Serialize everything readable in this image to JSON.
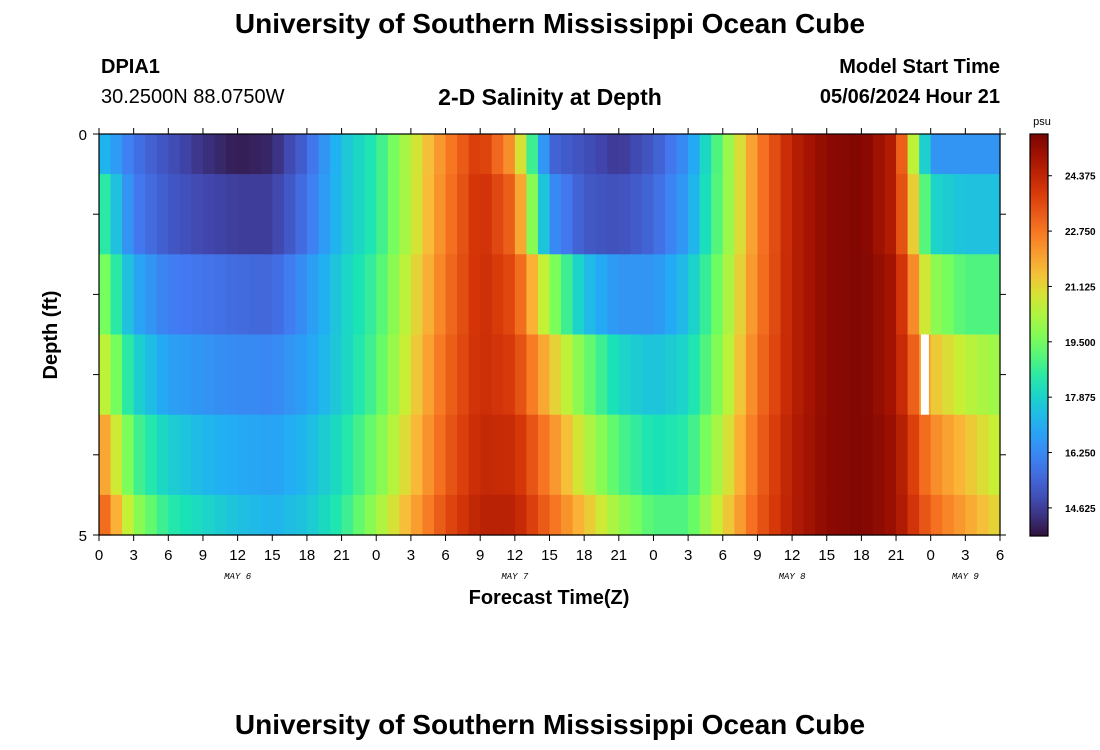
{
  "header": {
    "title": "University of Southern Mississippi Ocean Cube",
    "station_id": "DPIA1",
    "coordinates": "30.2500N  88.0750W",
    "subtitle": "2-D Salinity at Depth",
    "model_start_label": "Model Start Time",
    "model_start_value": "05/06/2024 Hour 21"
  },
  "footer": {
    "title": "University of Southern Mississippi Ocean Cube"
  },
  "chart_data": {
    "type": "heatmap",
    "title": "2-D Salinity at Depth",
    "xlabel": "Forecast Time(Z)",
    "ylabel": "Depth (ft)",
    "x_ticks": [
      "0",
      "3",
      "6",
      "9",
      "12",
      "15",
      "18",
      "21",
      "0",
      "3",
      "6",
      "9",
      "12",
      "15",
      "18",
      "21",
      "0",
      "3",
      "6",
      "9",
      "12",
      "15",
      "18",
      "21",
      "0",
      "3",
      "6"
    ],
    "day_labels": [
      {
        "label": "MAY 6",
        "hour": 12
      },
      {
        "label": "MAY 7",
        "hour": 36
      },
      {
        "label": "MAY 8",
        "hour": 60
      },
      {
        "label": "MAY 9",
        "hour": 75
      }
    ],
    "x_range_hours": [
      0,
      78
    ],
    "y_ticks": [
      "0",
      "5"
    ],
    "ylim": [
      0,
      5
    ],
    "colorbar": {
      "unit": "psu",
      "ticks": [
        "14.625",
        "16.250",
        "17.875",
        "19.500",
        "21.125",
        "22.750",
        "24.375"
      ],
      "vmin": 13.8,
      "vmax": 25.6
    },
    "hours": [
      0,
      3,
      6,
      9,
      12,
      15,
      18,
      21,
      24,
      27,
      30,
      33,
      36,
      39,
      42,
      45,
      48,
      51,
      54,
      57,
      60,
      63,
      66,
      69,
      72,
      75,
      78
    ],
    "layers": [
      {
        "depth": "0.0-0.5",
        "values": [
          17.5,
          15.8,
          15.0,
          14.4,
          14.0,
          14.2,
          15.5,
          17.5,
          18.5,
          20.5,
          22.5,
          24.0,
          22.0,
          15.5,
          15.0,
          14.5,
          15.2,
          16.5,
          19.5,
          22.5,
          24.5,
          25.3,
          25.5,
          24.5,
          16.5,
          16.5,
          16.5
        ]
      },
      {
        "depth": "0.5-1.5",
        "values": [
          19.0,
          16.0,
          15.2,
          14.8,
          14.6,
          14.6,
          15.8,
          17.5,
          18.5,
          20.5,
          22.6,
          24.2,
          23.0,
          16.5,
          15.2,
          15.0,
          15.5,
          16.8,
          19.5,
          22.5,
          24.5,
          25.3,
          25.5,
          24.5,
          18.0,
          17.5,
          17.5
        ]
      },
      {
        "depth": "1.5-2.5",
        "values": [
          20.0,
          17.0,
          16.0,
          15.8,
          15.6,
          15.5,
          16.5,
          17.8,
          18.8,
          20.8,
          22.8,
          24.2,
          23.5,
          20.0,
          17.5,
          16.5,
          16.5,
          17.5,
          19.8,
          22.6,
          24.5,
          25.3,
          25.5,
          24.8,
          20.0,
          19.0,
          19.0
        ]
      },
      {
        "depth": "2.5-3.5",
        "values": [
          21.0,
          18.0,
          16.8,
          16.5,
          16.3,
          16.2,
          16.8,
          17.8,
          19.0,
          21.0,
          23.0,
          24.2,
          23.8,
          21.5,
          19.5,
          18.0,
          17.5,
          18.0,
          20.0,
          22.8,
          24.5,
          25.3,
          25.5,
          24.8,
          21.5,
          20.5,
          20.0
        ]
      },
      {
        "depth": "3.5-4.5",
        "values": [
          22.5,
          19.0,
          17.8,
          17.3,
          17.0,
          16.8,
          17.3,
          18.2,
          19.5,
          21.3,
          23.2,
          24.3,
          24.2,
          22.5,
          20.5,
          19.0,
          18.2,
          18.5,
          20.5,
          23.0,
          24.6,
          25.3,
          25.5,
          25.0,
          22.5,
          21.5,
          20.5
        ]
      },
      {
        "depth": "4.5-5.0",
        "values": [
          23.5,
          20.0,
          18.5,
          18.0,
          17.5,
          17.2,
          17.6,
          18.5,
          20.0,
          21.8,
          23.5,
          24.5,
          24.5,
          23.0,
          21.5,
          20.0,
          19.0,
          19.0,
          21.0,
          23.2,
          24.6,
          25.3,
          25.5,
          25.0,
          23.0,
          22.0,
          21.0
        ]
      }
    ],
    "missing_cell": {
      "hour": 71.5,
      "layer_index": 3
    }
  }
}
